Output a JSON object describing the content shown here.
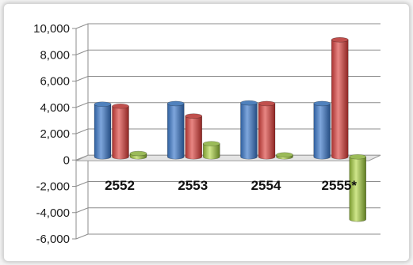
{
  "chart_data": {
    "type": "bar",
    "style": "3d-cylinder",
    "categories": [
      "2552",
      "2553",
      "2554",
      "2555*"
    ],
    "series": [
      {
        "values": [
          4000,
          4050,
          4100,
          4050
        ],
        "color": "#4f81bd"
      },
      {
        "values": [
          3850,
          3100,
          4050,
          8900
        ],
        "color": "#c0504d"
      },
      {
        "values": [
          250,
          1000,
          150,
          -4750
        ],
        "color": "#9bbb59"
      }
    ],
    "yticks": [
      "10,000",
      "8,000",
      "6,000",
      "4,000",
      "2,000",
      "0",
      "-2,000",
      "-4,000",
      "-6,000"
    ],
    "ylim": [
      -6000,
      10000
    ],
    "grid": true,
    "legend": "none",
    "title": "",
    "xlabel": "",
    "ylabel": ""
  }
}
